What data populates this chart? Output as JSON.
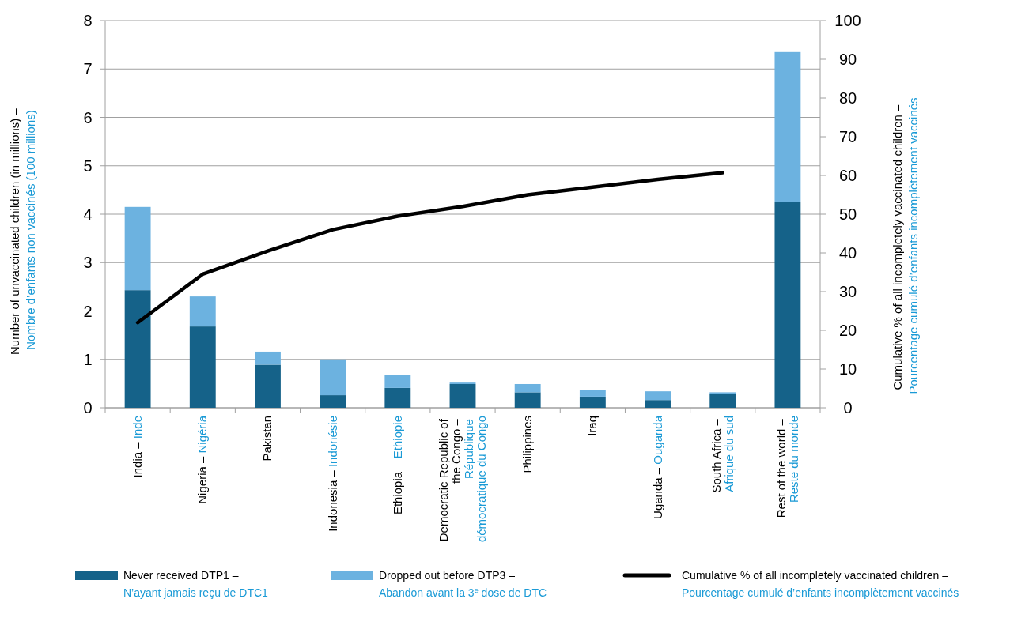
{
  "chart_data": {
    "type": "bar",
    "stacked": true,
    "ylabel": "Number of unvaccinated children (in millions) – Nombre d’enfants non vaccinés (100 millions)",
    "y2label": "Cumulative % of all incompletely vaccinated children – Pourcentage cumulé d’enfants incomplètement vaccinés",
    "categories": [
      "India – Inde",
      "Nigeria – Nigéria",
      "Pakistan",
      "Indonesia – Indonésie",
      "Ethiopia – Ethiopie",
      "Democratic Republic of the Congo – République démocratique du Congo",
      "Philippines",
      "Iraq",
      "Uganda – Ouganda",
      "South Africa – Afrique du sud",
      "Rest of the world – Reste du monde"
    ],
    "series": [
      {
        "name": "Never received DTP1 – N’ayant jamais reçu de DTC1",
        "color": "#156289",
        "values": [
          2.43,
          1.68,
          0.89,
          0.26,
          0.41,
          0.49,
          0.32,
          0.23,
          0.16,
          0.29,
          4.25
        ]
      },
      {
        "name": "Dropped out before DTP3 – Abandon avant la 3$^{e}$ dose de DTC",
        "color": "#6cb2e0",
        "values": [
          1.72,
          0.62,
          0.27,
          0.74,
          0.27,
          0.03,
          0.17,
          0.14,
          0.18,
          0.03,
          3.1
        ]
      },
      {
        "name": "Cumulative % of all incompletely vaccinated children – Pourcentage cumulé d’enfants incomplètement vaccinés",
        "type": "line",
        "axis": "y2",
        "color": "#000000",
        "values": [
          22,
          34.5,
          40.5,
          46,
          49.5,
          52,
          55,
          57,
          59,
          60.7,
          null
        ]
      }
    ],
    "ylim": [
      0,
      8
    ],
    "yticks": [
      0,
      1,
      2,
      3,
      4,
      5,
      6,
      7,
      8
    ],
    "y2lim": [
      0,
      100
    ],
    "y2ticks": [
      0,
      10,
      20,
      30,
      40,
      50,
      60,
      70,
      80,
      90,
      100
    ],
    "grid": "y",
    "legend": "bottom",
    "marker": "none",
    "line_style": "solid"
  }
}
